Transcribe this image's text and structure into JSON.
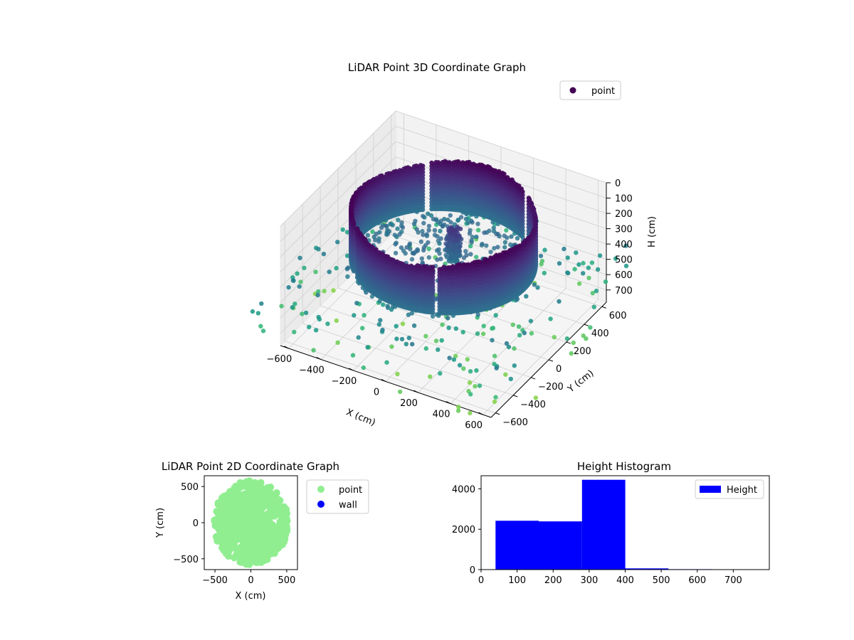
{
  "chart_data": [
    {
      "type": "scatter",
      "projection": "3d",
      "title": "LiDAR Point 3D Coordinate Graph",
      "xlabel": "X (cm)",
      "ylabel": "Y (cm)",
      "zlabel": "H (cm)",
      "x_ticks": [
        "−600",
        "−400",
        "−200",
        "0",
        "200",
        "400",
        "600"
      ],
      "y_ticks": [
        "−600",
        "−400",
        "−200",
        "0",
        "200",
        "400",
        "600"
      ],
      "z_ticks": [
        "0",
        "100",
        "200",
        "300",
        "400",
        "500",
        "600",
        "700"
      ],
      "xlim": [
        -650,
        650
      ],
      "ylim": [
        -650,
        650
      ],
      "zlim": [
        0,
        750
      ],
      "z_inverted": true,
      "colormap": "viridis",
      "legend": {
        "position": "top-right",
        "entries": [
          {
            "label": "point",
            "color": "#440154"
          }
        ]
      },
      "structure": {
        "cylinder_radius_cm": 500,
        "wall_height_top_cm": 60,
        "wall_height_bottom_cm": 370,
        "central_pillar_height_cm": [
          180,
          390
        ],
        "sparse_points_height_cm": [
          400,
          780
        ]
      }
    },
    {
      "type": "scatter",
      "title": "LiDAR Point 2D Coordinate Graph",
      "xlabel": "X (cm)",
      "ylabel": "Y (cm)",
      "x_ticks": [
        "−500",
        "0",
        "500"
      ],
      "y_ticks": [
        "−500",
        "0",
        "500"
      ],
      "xlim": [
        -650,
        650
      ],
      "ylim": [
        -650,
        650
      ],
      "legend": {
        "position": "outside-right",
        "entries": [
          {
            "label": "point",
            "color": "#90ee90"
          },
          {
            "label": "wall",
            "color": "#0000ff"
          }
        ]
      },
      "series": [
        {
          "name": "point",
          "color": "#90ee90",
          "shape": "disk",
          "radius_cm": 520
        }
      ]
    },
    {
      "type": "bar",
      "subtype": "histogram",
      "title": "Height Histogram",
      "x_ticks": [
        "0",
        "100",
        "200",
        "300",
        "400",
        "500",
        "600",
        "700"
      ],
      "y_ticks": [
        "0",
        "2000",
        "4000"
      ],
      "xlim": [
        0,
        800
      ],
      "ylim": [
        0,
        4650
      ],
      "color": "#0000ff",
      "legend": {
        "position": "top-right",
        "entries": [
          {
            "label": "Height",
            "color": "#0000ff"
          }
        ]
      },
      "bins": [
        {
          "start": 40,
          "end": 160,
          "count": 2420
        },
        {
          "start": 160,
          "end": 280,
          "count": 2390
        },
        {
          "start": 280,
          "end": 400,
          "count": 4450
        },
        {
          "start": 400,
          "end": 520,
          "count": 60
        },
        {
          "start": 520,
          "end": 640,
          "count": 20
        },
        {
          "start": 640,
          "end": 760,
          "count": 15
        },
        {
          "start": 760,
          "end": 880,
          "count": 10
        }
      ]
    }
  ]
}
